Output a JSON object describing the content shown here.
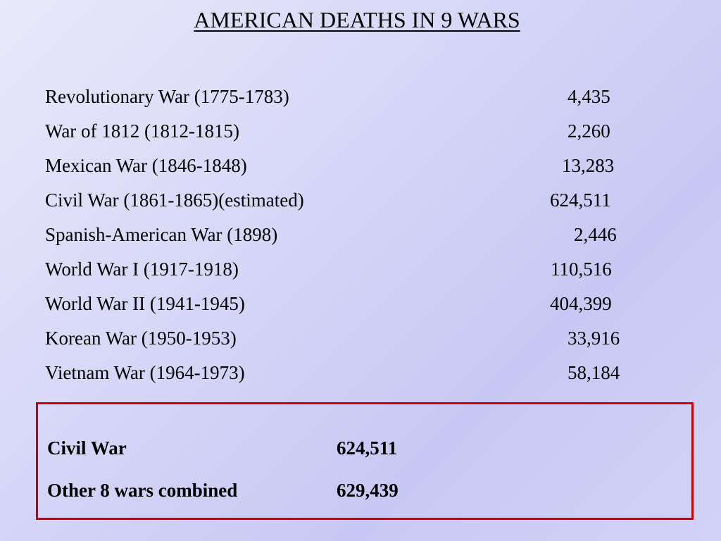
{
  "slide": {
    "title": "AMERICAN DEATHS IN 9 WARS",
    "wars": [
      {
        "name": "Revolutionary War (1775-1783)",
        "deaths": "4,435"
      },
      {
        "name": "War of 1812 (1812-1815)",
        "deaths": "2,260"
      },
      {
        "name": "Mexican War (1846-1848)",
        "deaths": "13,283"
      },
      {
        "name": "Civil War (1861-1865)(estimated)",
        "deaths": "624,511"
      },
      {
        "name": "Spanish-American War (1898)",
        "deaths": "2,446"
      },
      {
        "name": "World War I (1917-1918)",
        "deaths": "110,516"
      },
      {
        "name": "World War II (1941-1945)",
        "deaths": "404,399"
      },
      {
        "name": "Korean War (1950-1953)",
        "deaths": "33,916"
      },
      {
        "name": "Vietnam War (1964-1973)",
        "deaths": "58,184"
      }
    ],
    "summary": [
      {
        "label": "Civil War",
        "value": "624,511"
      },
      {
        "label": "Other 8 wars combined",
        "value": "629,439"
      }
    ],
    "colors": {
      "border": "#cc0000",
      "text": "#000000"
    }
  }
}
